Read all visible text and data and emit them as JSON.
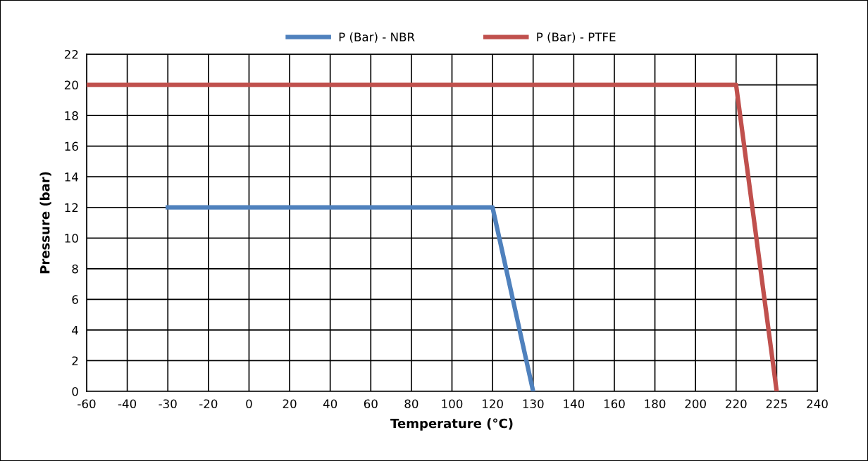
{
  "chart_data": {
    "type": "line",
    "xlabel": "Temperature (°C)",
    "ylabel": "Pressure (bar)",
    "categories": [
      "-60",
      "-40",
      "-30",
      "-20",
      "0",
      "20",
      "40",
      "60",
      "80",
      "100",
      "120",
      "130",
      "140",
      "160",
      "180",
      "200",
      "220",
      "225",
      "240"
    ],
    "series": [
      {
        "name": "P (Bar) - NBR",
        "color": "#4f81bd",
        "values": [
          null,
          null,
          12,
          12,
          12,
          12,
          12,
          12,
          12,
          12,
          12,
          0,
          null,
          null,
          null,
          null,
          null,
          null,
          null
        ]
      },
      {
        "name": "P (Bar) - PTFE",
        "color": "#c0504d",
        "values": [
          20,
          20,
          20,
          20,
          20,
          20,
          20,
          20,
          20,
          20,
          20,
          20,
          20,
          20,
          20,
          20,
          20,
          0,
          null
        ]
      }
    ],
    "ylim": [
      0,
      22
    ],
    "yticks": [
      0,
      2,
      4,
      6,
      8,
      10,
      12,
      14,
      16,
      18,
      20,
      22
    ],
    "grid": true,
    "legend": "top",
    "marker": "none",
    "line_style": "solid"
  }
}
